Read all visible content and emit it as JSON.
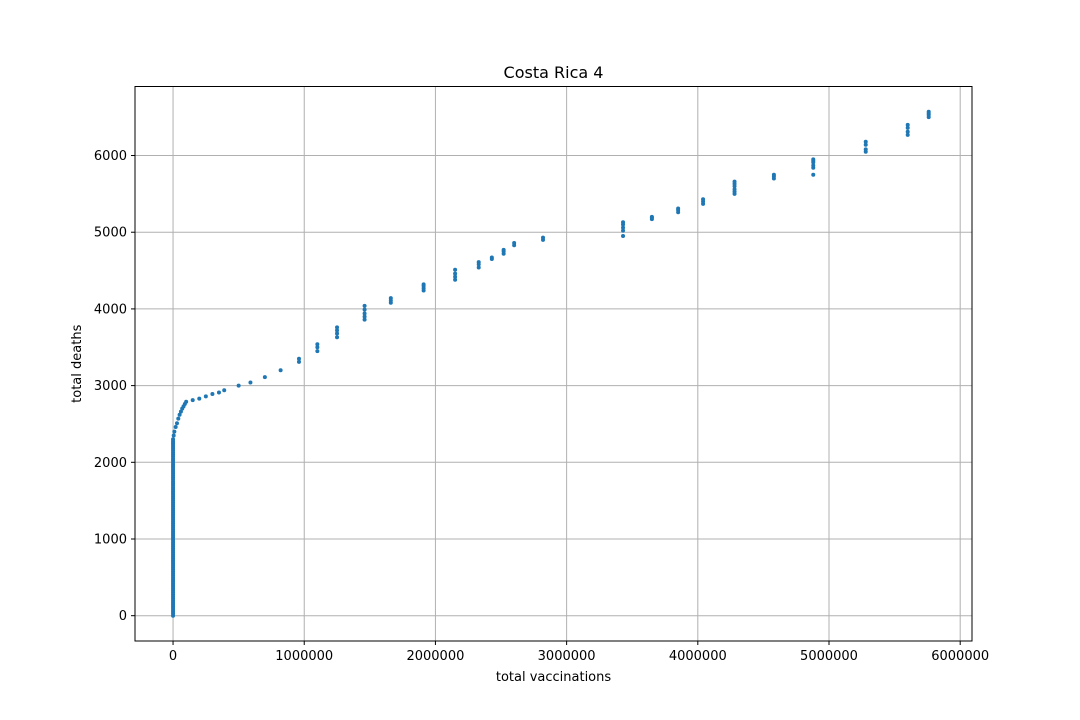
{
  "chart_data": {
    "type": "scatter",
    "title": "Costa Rica 4",
    "xlabel": "total vaccinations",
    "ylabel": "total deaths",
    "xlim": [
      -290000,
      6090000
    ],
    "ylim": [
      -330,
      6900
    ],
    "xticks": [
      0,
      1000000,
      2000000,
      3000000,
      4000000,
      5000000,
      6000000
    ],
    "xtick_labels": [
      "0",
      "1000000",
      "2000000",
      "3000000",
      "4000000",
      "5000000",
      "6000000"
    ],
    "yticks": [
      0,
      1000,
      2000,
      3000,
      4000,
      5000,
      6000
    ],
    "ytick_labels": [
      "0",
      "1000",
      "2000",
      "3000",
      "4000",
      "5000",
      "6000"
    ],
    "grid": true,
    "marker_color": "#1f77b4",
    "series": [
      {
        "x": [
          0,
          0,
          0,
          0,
          0,
          0,
          0,
          0,
          0,
          0,
          0,
          0,
          0,
          0,
          0,
          0,
          0,
          0,
          0,
          0,
          0,
          0,
          0,
          0,
          0,
          0,
          0,
          0,
          0,
          0,
          0,
          0,
          0,
          0,
          0,
          0,
          0,
          0,
          0,
          0,
          0,
          0,
          0,
          0,
          0,
          0,
          0,
          0,
          0,
          0,
          0,
          0,
          0,
          0,
          0,
          0,
          0,
          0,
          0,
          0,
          0,
          0,
          0,
          0,
          0,
          0,
          0,
          0,
          0,
          0,
          0,
          0,
          0,
          0,
          0,
          0,
          0,
          0,
          0,
          0,
          0,
          0,
          0,
          0,
          0,
          0,
          0,
          0,
          0,
          0,
          0,
          0,
          0,
          5000,
          10000,
          20000,
          30000,
          40000,
          50000,
          60000,
          70000,
          80000,
          90000,
          100000,
          150000,
          200000,
          250000,
          300000,
          350000,
          390000,
          500000,
          590000,
          700000,
          820000,
          960000,
          960000,
          1100000,
          1100000,
          1100000,
          1250000,
          1250000,
          1250000,
          1250000,
          1460000,
          1460000,
          1460000,
          1460000,
          1460000,
          1660000,
          1660000,
          1660000,
          1910000,
          1910000,
          1910000,
          1910000,
          2150000,
          2150000,
          2150000,
          2150000,
          2330000,
          2330000,
          2330000,
          2430000,
          2430000,
          2520000,
          2520000,
          2520000,
          2600000,
          2600000,
          2820000,
          2820000,
          3430000,
          3430000,
          3430000,
          3430000,
          3430000,
          3650000,
          3650000,
          3650000,
          3850000,
          3850000,
          3850000,
          4040000,
          4040000,
          4040000,
          4280000,
          4280000,
          4280000,
          4280000,
          4280000,
          4280000,
          4580000,
          4580000,
          4580000,
          4880000,
          4880000,
          4880000,
          4880000,
          4880000,
          4880000,
          5280000,
          5280000,
          5280000,
          5280000,
          5600000,
          5600000,
          5600000,
          5600000,
          5760000,
          5760000,
          5760000,
          5760000
        ],
        "y": [
          0,
          25,
          50,
          75,
          100,
          125,
          150,
          175,
          200,
          225,
          250,
          275,
          300,
          325,
          350,
          375,
          400,
          425,
          450,
          475,
          500,
          525,
          550,
          575,
          600,
          625,
          650,
          675,
          700,
          725,
          750,
          775,
          800,
          825,
          850,
          875,
          900,
          925,
          950,
          975,
          1000,
          1025,
          1050,
          1075,
          1100,
          1125,
          1150,
          1175,
          1200,
          1225,
          1250,
          1275,
          1300,
          1325,
          1350,
          1375,
          1400,
          1425,
          1450,
          1475,
          1500,
          1525,
          1550,
          1575,
          1600,
          1625,
          1650,
          1675,
          1700,
          1725,
          1750,
          1775,
          1800,
          1825,
          1850,
          1875,
          1900,
          1925,
          1950,
          1975,
          2000,
          2025,
          2050,
          2075,
          2100,
          2125,
          2150,
          2175,
          2200,
          2225,
          2250,
          2275,
          2300,
          2350,
          2400,
          2460,
          2510,
          2570,
          2620,
          2660,
          2700,
          2730,
          2760,
          2790,
          2810,
          2830,
          2860,
          2890,
          2910,
          2940,
          3000,
          3040,
          3110,
          3200,
          3310,
          3350,
          3450,
          3500,
          3540,
          3630,
          3680,
          3720,
          3760,
          3860,
          3900,
          3940,
          3990,
          4040,
          4080,
          4110,
          4140,
          4240,
          4270,
          4300,
          4320,
          4380,
          4420,
          4460,
          4510,
          4540,
          4580,
          4610,
          4650,
          4670,
          4720,
          4750,
          4770,
          4830,
          4860,
          4900,
          4930,
          4950,
          5020,
          5060,
          5100,
          5130,
          5170,
          5190,
          5200,
          5260,
          5290,
          5310,
          5370,
          5400,
          5430,
          5500,
          5530,
          5560,
          5600,
          5630,
          5660,
          5700,
          5730,
          5750,
          5750,
          5840,
          5870,
          5910,
          5930,
          5950,
          6050,
          6080,
          6140,
          6180,
          6270,
          6310,
          6360,
          6400,
          6500,
          6530,
          6550,
          6570
        ]
      }
    ]
  }
}
